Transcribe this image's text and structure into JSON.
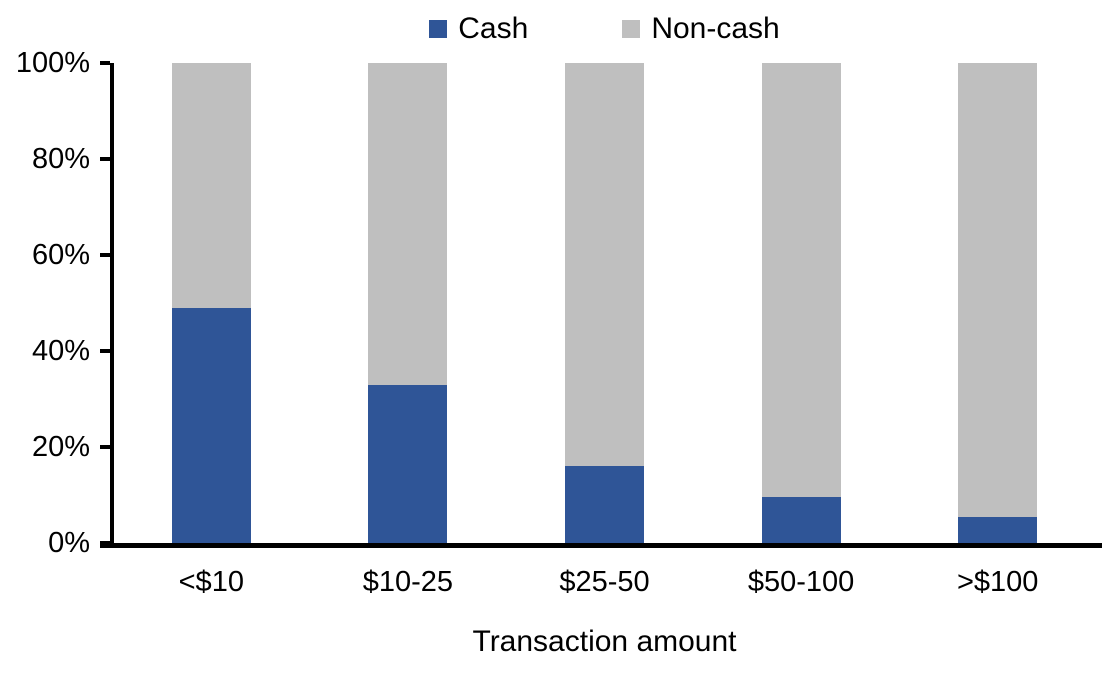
{
  "chart_data": {
    "type": "bar",
    "subtype": "stacked-100-percent",
    "title": "",
    "xlabel": "Transaction amount",
    "ylabel": "",
    "categories": [
      "<$10",
      "$10-25",
      "$25-50",
      "$50-100",
      ">$100"
    ],
    "series": [
      {
        "name": "Cash",
        "color": "#2F5597",
        "values": [
          49,
          33,
          16,
          9.5,
          5.5
        ]
      },
      {
        "name": "Non-cash",
        "color": "#BFBFBF",
        "values": [
          51,
          67,
          84,
          90.5,
          94.5
        ]
      }
    ],
    "ylim": [
      0,
      100
    ],
    "ytick_values": [
      0,
      20,
      40,
      60,
      80,
      100
    ],
    "yticks": [
      "0%",
      "20%",
      "40%",
      "60%",
      "80%",
      "100%"
    ],
    "grid": false,
    "legend_position": "top-center",
    "axis_color": "#000000",
    "background_color": "#FFFFFF"
  }
}
